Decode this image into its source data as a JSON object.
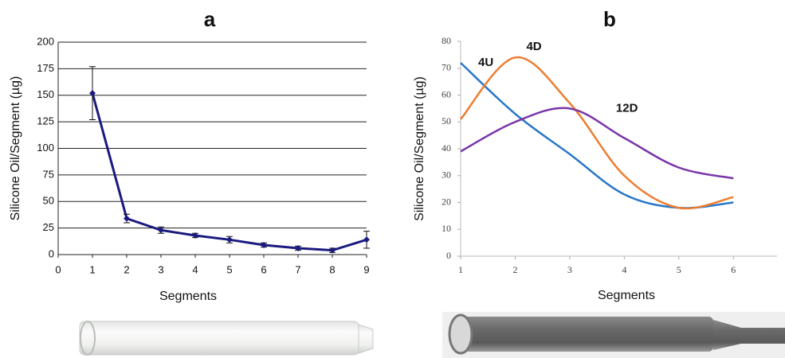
{
  "chart_data": [
    {
      "type": "line",
      "title": "a",
      "xlabel": "Segments",
      "ylabel": "Silicone Oil/Segment (µg)",
      "x": [
        1,
        2,
        3,
        4,
        5,
        6,
        7,
        8,
        9
      ],
      "values": [
        152,
        34,
        23,
        18,
        14,
        9,
        6,
        4,
        14
      ],
      "errors": [
        25,
        4,
        3,
        2,
        3,
        2,
        2,
        2,
        8
      ],
      "color": "#1a1a80",
      "xlim": [
        0,
        9
      ],
      "xticks": [
        0,
        1,
        2,
        3,
        4,
        5,
        6,
        7,
        8,
        9
      ],
      "ylim": [
        0,
        200
      ],
      "yticks": [
        0,
        25,
        50,
        75,
        100,
        125,
        150,
        175,
        200
      ],
      "grid": true,
      "smooth": false
    },
    {
      "type": "line",
      "title": "b",
      "xlabel": "Segments",
      "ylabel": "Silicone Oil/Segment (µg)",
      "x": [
        1,
        2,
        3,
        4,
        5,
        6
      ],
      "series": [
        {
          "name": "4U",
          "color": "#2878c8",
          "values": [
            72,
            53,
            38,
            23,
            18,
            20
          ]
        },
        {
          "name": "4D",
          "color": "#ed7d31",
          "values": [
            51,
            74,
            57,
            30,
            18,
            22
          ]
        },
        {
          "name": "12D",
          "color": "#7a35a8",
          "values": [
            39,
            50,
            55,
            44,
            33,
            29
          ]
        }
      ],
      "xlim": [
        1,
        6.8
      ],
      "xticks": [
        1,
        2,
        3,
        4,
        5,
        6
      ],
      "ylim": [
        0,
        80
      ],
      "yticks": [
        0,
        10,
        20,
        30,
        40,
        50,
        60,
        70,
        80
      ],
      "grid": false,
      "smooth": true
    }
  ]
}
